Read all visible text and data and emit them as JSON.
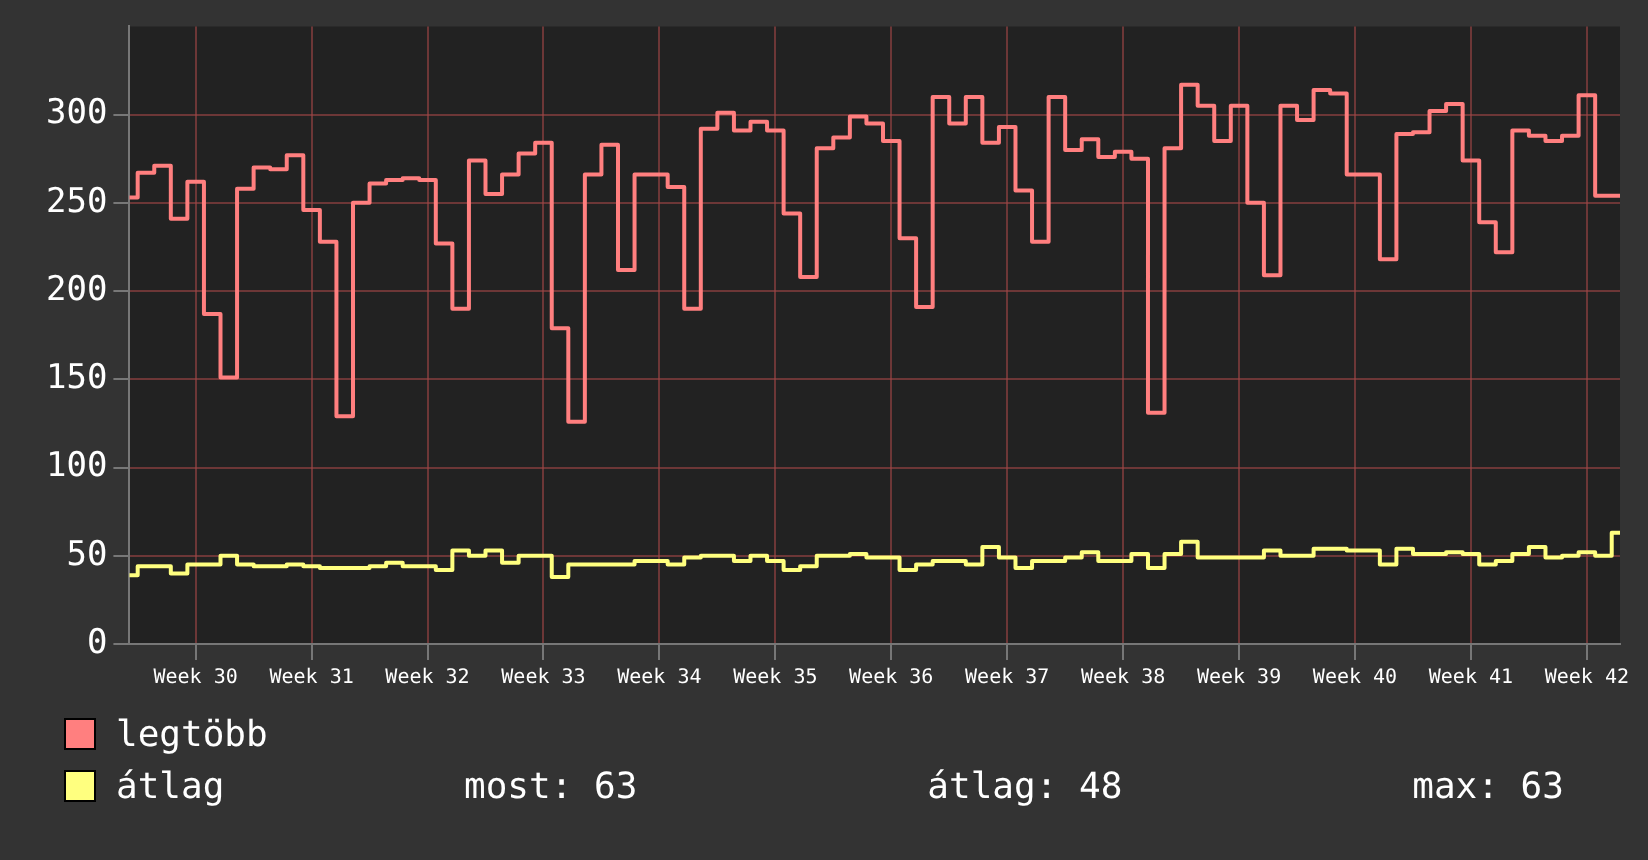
{
  "chart_data": {
    "type": "step",
    "categories": [
      null,
      null,
      null,
      null,
      "Week 30",
      null,
      null,
      null,
      null,
      null,
      null,
      "Week 31",
      null,
      null,
      null,
      null,
      null,
      null,
      "Week 32",
      null,
      null,
      null,
      null,
      null,
      null,
      "Week 33",
      null,
      null,
      null,
      null,
      null,
      null,
      "Week 34",
      null,
      null,
      null,
      null,
      null,
      null,
      "Week 35",
      null,
      null,
      null,
      null,
      null,
      null,
      "Week 36",
      null,
      null,
      null,
      null,
      null,
      null,
      "Week 37",
      null,
      null,
      null,
      null,
      null,
      null,
      "Week 38",
      null,
      null,
      null,
      null,
      null,
      null,
      "Week 39",
      null,
      null,
      null,
      null,
      null,
      null,
      "Week 40",
      null,
      null,
      null,
      null,
      null,
      null,
      "Week 41",
      null,
      null,
      null,
      null,
      null,
      null,
      "Week 42",
      null,
      null
    ],
    "ylim": [
      0,
      350
    ],
    "yticks": [
      0,
      50,
      100,
      150,
      200,
      250,
      300
    ],
    "grid": true,
    "legend": "bottom left",
    "annotations": [
      "most: 63",
      "átlag: 48",
      "max: 63"
    ],
    "series": [
      {
        "name": "legtöbb",
        "color": "#ff7f7f",
        "values": [
          253,
          267,
          271,
          241,
          262,
          187,
          151,
          258,
          270,
          269,
          277,
          246,
          228,
          129,
          250,
          261,
          263,
          264,
          263,
          227,
          190,
          274,
          255,
          266,
          278,
          284,
          179,
          126,
          266,
          283,
          212,
          266,
          266,
          259,
          190,
          292,
          301,
          291,
          296,
          291,
          244,
          208,
          281,
          287,
          299,
          295,
          285,
          230,
          191,
          310,
          295,
          310,
          284,
          293,
          257,
          228,
          310,
          280,
          286,
          276,
          279,
          275,
          131,
          281,
          317,
          305,
          285,
          305,
          250,
          209,
          305,
          297,
          314,
          312,
          266,
          266,
          218,
          289,
          290,
          302,
          306,
          274,
          239,
          222,
          291,
          288,
          285,
          288,
          311,
          254,
          254
        ]
      },
      {
        "name": "átlag",
        "color": "#ffff7f",
        "values": [
          39,
          44,
          44,
          40,
          45,
          45,
          50,
          45,
          44,
          44,
          45,
          44,
          43,
          43,
          43,
          44,
          46,
          44,
          44,
          42,
          53,
          50,
          53,
          46,
          50,
          50,
          38,
          45,
          45,
          45,
          45,
          47,
          47,
          45,
          49,
          50,
          50,
          47,
          50,
          47,
          42,
          44,
          50,
          50,
          51,
          49,
          49,
          42,
          45,
          47,
          47,
          45,
          55,
          49,
          43,
          47,
          47,
          49,
          52,
          47,
          47,
          51,
          43,
          51,
          58,
          49,
          49,
          49,
          49,
          53,
          50,
          50,
          54,
          54,
          53,
          53,
          45,
          54,
          51,
          51,
          52,
          51,
          45,
          47,
          51,
          55,
          49,
          50,
          52,
          50,
          63
        ]
      }
    ]
  }
}
